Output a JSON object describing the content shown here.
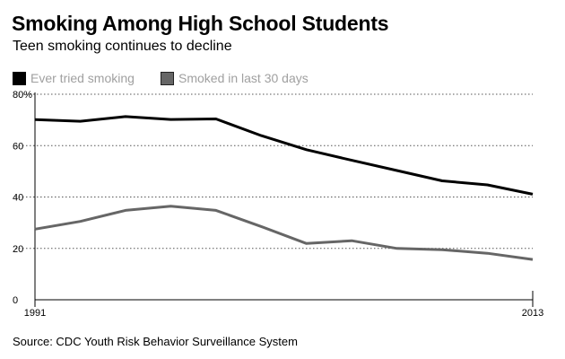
{
  "title": "Smoking Among High School Students",
  "subtitle": "Teen smoking continues to decline",
  "source": "Source: CDC Youth Risk Behavior Surveillance System",
  "colors": {
    "series1": "#000000",
    "series2": "#666666",
    "grid": "#555555",
    "legend_text": "#a0a0a0"
  },
  "legend": [
    {
      "label": "Ever tried smoking"
    },
    {
      "label": "Smoked in last 30 days"
    }
  ],
  "chart_data": {
    "type": "line",
    "title": "Smoking Among High School Students",
    "subtitle": "Teen smoking continues to decline",
    "xlabel": "",
    "ylabel": "",
    "x": [
      1991,
      1993,
      1995,
      1997,
      1999,
      2001,
      2003,
      2005,
      2007,
      2009,
      2011,
      2013
    ],
    "x_tick_labels": [
      "1991",
      "2013"
    ],
    "y_ticks": [
      0,
      20,
      40,
      60,
      80
    ],
    "y_tick_labels": [
      "0",
      "20",
      "40",
      "60",
      "80%"
    ],
    "ylim": [
      0,
      80
    ],
    "grid": true,
    "legend_position": "top-left",
    "series": [
      {
        "name": "Ever tried smoking",
        "values": [
          70.1,
          69.5,
          71.3,
          70.2,
          70.4,
          63.9,
          58.4,
          54.3,
          50.3,
          46.3,
          44.7,
          41.1
        ]
      },
      {
        "name": "Smoked in last 30 days",
        "values": [
          27.5,
          30.5,
          34.8,
          36.4,
          34.8,
          28.5,
          21.9,
          23.0,
          20.0,
          19.5,
          18.1,
          15.7
        ]
      }
    ]
  }
}
